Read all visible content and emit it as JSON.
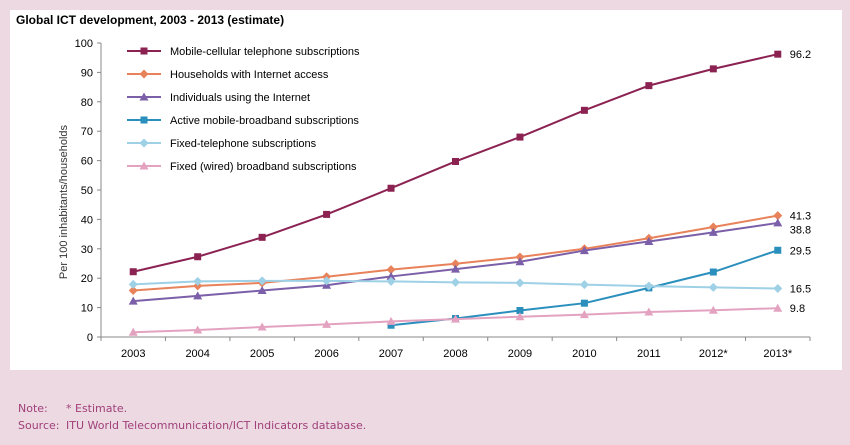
{
  "chart_data": {
    "type": "line",
    "title": "Global ICT development, 2003 - 2013 (estimate)",
    "ylabel": "Per 100 inhabitants/households",
    "xlabel": "",
    "ylim": [
      0,
      100
    ],
    "yticks": [
      0,
      10,
      20,
      30,
      40,
      50,
      60,
      70,
      80,
      90,
      100
    ],
    "categories": [
      "2003",
      "2004",
      "2005",
      "2006",
      "2007",
      "2008",
      "2009",
      "2010",
      "2011",
      "2012*",
      "2013*"
    ],
    "grid": false,
    "legend_position": "top-left",
    "series": [
      {
        "name": "Mobile-cellular telephone subscriptions",
        "color": "#8b2252",
        "marker": "square",
        "values": [
          22.2,
          27.3,
          33.9,
          41.7,
          50.6,
          59.7,
          68.0,
          77.1,
          85.5,
          91.2,
          96.2
        ],
        "end_label": "96.2"
      },
      {
        "name": "Households with Internet access",
        "color": "#e8825a",
        "marker": "diamond",
        "values": [
          15.8,
          17.4,
          18.4,
          20.5,
          22.9,
          24.9,
          27.2,
          30.0,
          33.6,
          37.4,
          41.3
        ],
        "end_label": "41.3"
      },
      {
        "name": "Individuals using the Internet",
        "color": "#7b5fa8",
        "marker": "triangle",
        "values": [
          12.2,
          14.0,
          15.8,
          17.6,
          20.6,
          23.1,
          25.6,
          29.4,
          32.5,
          35.6,
          38.8
        ],
        "end_label": "38.8"
      },
      {
        "name": "Active mobile-broadband subscriptions",
        "color": "#2a8fbd",
        "marker": "square",
        "values": [
          null,
          null,
          null,
          null,
          4.0,
          6.3,
          9.0,
          11.5,
          16.7,
          22.1,
          29.5
        ],
        "end_label": "29.5"
      },
      {
        "name": "Fixed-telephone subscriptions",
        "color": "#9ed0e6",
        "marker": "diamond",
        "values": [
          17.9,
          18.9,
          19.1,
          19.1,
          18.9,
          18.6,
          18.4,
          17.8,
          17.3,
          16.9,
          16.5
        ],
        "end_label": "16.5"
      },
      {
        "name": "Fixed (wired) broadband subscriptions",
        "color": "#e3a3c0",
        "marker": "triangle",
        "values": [
          1.6,
          2.4,
          3.4,
          4.3,
          5.3,
          6.1,
          6.9,
          7.6,
          8.5,
          9.1,
          9.8
        ],
        "end_label": "9.8"
      }
    ]
  },
  "notes": {
    "note_label": "Note:",
    "note_text": "* Estimate.",
    "source_label": "Source:",
    "source_text": "ITU World Telecommunication/ICT Indicators database."
  }
}
